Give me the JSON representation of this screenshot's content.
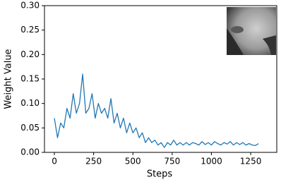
{
  "chart_data": {
    "type": "line",
    "xlabel": "Steps",
    "ylabel": "Weight Value",
    "x": [
      0,
      20,
      40,
      60,
      80,
      100,
      120,
      140,
      160,
      180,
      200,
      220,
      240,
      260,
      280,
      300,
      320,
      340,
      360,
      380,
      400,
      420,
      440,
      460,
      480,
      500,
      520,
      540,
      560,
      580,
      600,
      620,
      640,
      660,
      680,
      700,
      720,
      740,
      760,
      780,
      800,
      820,
      840,
      860,
      880,
      900,
      920,
      940,
      960,
      980,
      1000,
      1020,
      1040,
      1060,
      1080,
      1100,
      1120,
      1140,
      1160,
      1180,
      1200,
      1220,
      1240,
      1260,
      1280,
      1300
    ],
    "values": [
      0.07,
      0.03,
      0.06,
      0.05,
      0.09,
      0.07,
      0.12,
      0.08,
      0.1,
      0.16,
      0.08,
      0.09,
      0.12,
      0.07,
      0.1,
      0.08,
      0.09,
      0.07,
      0.11,
      0.06,
      0.08,
      0.05,
      0.07,
      0.04,
      0.06,
      0.04,
      0.05,
      0.03,
      0.04,
      0.02,
      0.03,
      0.02,
      0.025,
      0.015,
      0.02,
      0.01,
      0.02,
      0.015,
      0.025,
      0.015,
      0.02,
      0.015,
      0.02,
      0.015,
      0.02,
      0.018,
      0.015,
      0.022,
      0.016,
      0.02,
      0.015,
      0.022,
      0.018,
      0.015,
      0.02,
      0.017,
      0.022,
      0.015,
      0.02,
      0.016,
      0.02,
      0.015,
      0.018,
      0.015,
      0.014,
      0.018
    ],
    "color": "#1f77b4",
    "xlim": [
      -63,
      1416
    ],
    "ylim": [
      0,
      0.3
    ],
    "xticks": [
      0,
      250,
      500,
      750,
      1000,
      1250
    ],
    "yticks": [
      {
        "value": 0,
        "label": "0.00"
      },
      {
        "value": 0.05,
        "label": "0.05"
      },
      {
        "value": 0.1,
        "label": "0.10"
      },
      {
        "value": 0.15,
        "label": "0.15"
      },
      {
        "value": 0.2,
        "label": "0.20"
      },
      {
        "value": 0.25,
        "label": "0.25"
      },
      {
        "value": 0.3,
        "label": "0.30"
      }
    ]
  }
}
